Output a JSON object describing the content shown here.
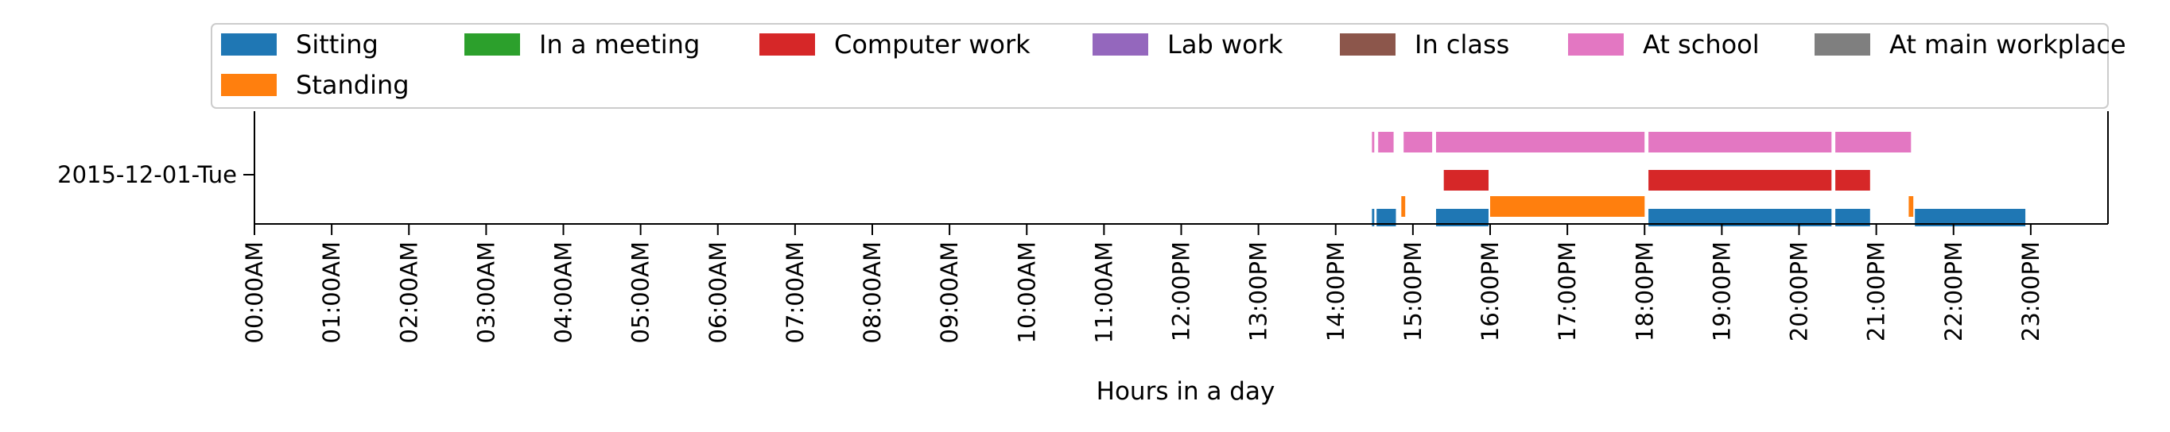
{
  "chart_data": {
    "type": "timeline",
    "xlabel": "Hours in a day",
    "ylabel": "",
    "xlim": [
      0,
      24
    ],
    "x_ticks": [
      "00:00AM",
      "01:00AM",
      "02:00AM",
      "03:00AM",
      "04:00AM",
      "05:00AM",
      "06:00AM",
      "07:00AM",
      "08:00AM",
      "09:00AM",
      "10:00AM",
      "11:00AM",
      "12:00PM",
      "13:00PM",
      "14:00PM",
      "15:00PM",
      "16:00PM",
      "17:00PM",
      "18:00PM",
      "19:00PM",
      "20:00PM",
      "21:00PM",
      "22:00PM",
      "23:00PM"
    ],
    "y_categories": [
      "2015-12-01-Tue"
    ],
    "grid": false,
    "legend": {
      "placement": "top",
      "entries": [
        {
          "name": "Sitting",
          "color": "#1f77b4"
        },
        {
          "name": "Standing",
          "color": "#ff7f0e"
        },
        {
          "name": "In a meeting",
          "color": "#2ca02c"
        },
        {
          "name": "Computer work",
          "color": "#d62728"
        },
        {
          "name": "Lab work",
          "color": "#9467bd"
        },
        {
          "name": "In class",
          "color": "#8c564b"
        },
        {
          "name": "At school",
          "color": "#e377c2"
        },
        {
          "name": "At main workplace",
          "color": "#7f7f7f"
        }
      ]
    },
    "series": [
      {
        "name": "Sitting",
        "color": "#1f77b4",
        "intervals": [
          [
            14.47,
            14.5
          ],
          [
            14.53,
            14.78
          ],
          [
            15.3,
            15.98
          ],
          [
            18.05,
            20.42
          ],
          [
            20.47,
            20.92
          ],
          [
            21.5,
            22.93
          ]
        ]
      },
      {
        "name": "Standing",
        "color": "#ff7f0e",
        "intervals": [
          [
            14.85,
            14.9
          ],
          [
            16.0,
            18.0
          ],
          [
            21.42,
            21.48
          ]
        ]
      },
      {
        "name": "Computer work",
        "color": "#d62728",
        "intervals": [
          [
            15.4,
            15.98
          ],
          [
            18.05,
            20.42
          ],
          [
            20.47,
            20.92
          ]
        ]
      },
      {
        "name": "At school",
        "color": "#e377c2",
        "intervals": [
          [
            14.47,
            14.5
          ],
          [
            14.55,
            14.75
          ],
          [
            14.88,
            15.25
          ],
          [
            15.3,
            18.0
          ],
          [
            18.05,
            20.42
          ],
          [
            20.47,
            21.45
          ]
        ]
      }
    ]
  }
}
